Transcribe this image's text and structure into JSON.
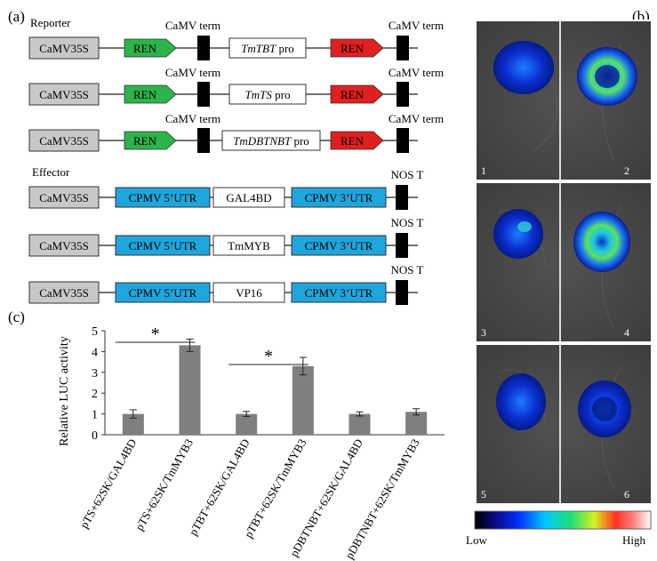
{
  "panel_a": {
    "label": "(a)",
    "reporter_label": "Reporter",
    "effector_label": "Effector",
    "reporters": [
      {
        "promoter35": "CaMV35S",
        "ren1": "REN",
        "term1": "CaMV term",
        "target_italic": "TmTBT",
        "target_rest": " pro",
        "ren2": "REN",
        "term2": "CaMV term"
      },
      {
        "promoter35": "CaMV35S",
        "ren1": "REN",
        "term1": "CaMV term",
        "target_italic": "TmTS",
        "target_rest": " pro",
        "ren2": "REN",
        "term2": "CaMV term"
      },
      {
        "promoter35": "CaMV35S",
        "ren1": "REN",
        "term1": "CaMV term",
        "target_italic": "TmDBTNBT",
        "target_rest": " pro",
        "ren2": "REN",
        "term2": "CaMV term"
      }
    ],
    "effectors": [
      {
        "promoter35": "CaMV35S",
        "utr5": "CPMV 5’UTR",
        "gene": "GAL4BD",
        "utr3": "CPMV 3’UTR",
        "term": "NOS T"
      },
      {
        "promoter35": "CaMV35S",
        "utr5": "CPMV 5’UTR",
        "gene": "TmMYB",
        "utr3": "CPMV 3’UTR",
        "term": "NOS T"
      },
      {
        "promoter35": "CaMV35S",
        "utr5": "CPMV 5’UTR",
        "gene": "VP16",
        "utr3": "CPMV 3’UTR",
        "term": "NOS T"
      }
    ],
    "colors": {
      "promoter": "#c8c8c8",
      "ren_green": "#2cb34a",
      "ren_red": "#e01f1f",
      "utr_blue": "#1ea6dc",
      "terminator": "#000000"
    }
  },
  "panel_b": {
    "label": "(b)",
    "leaf_numbers": [
      "1",
      "2",
      "3",
      "4",
      "5",
      "6"
    ],
    "scale_low": "Low",
    "scale_high": "High"
  },
  "panel_c": {
    "label": "(c)",
    "significance": "*"
  },
  "chart_data": {
    "type": "bar",
    "ylabel": "Relative LUC activity",
    "ylim": [
      0,
      5
    ],
    "yticks": [
      "0",
      "1",
      "2",
      "3",
      "4",
      "5"
    ],
    "categories": [
      "pTS+62SK/GAL4BD",
      "pTS+62SK/TmMYB3",
      "pTBT+62SK/GAL4BD",
      "pTBT+62SK/TmMYB3",
      "pDBTNBT+62SK/GAL4BD",
      "pDBTNBT+62SK/TmMYB3"
    ],
    "values": [
      1.0,
      4.3,
      1.0,
      3.3,
      1.0,
      1.1
    ],
    "errors": [
      0.2,
      0.3,
      0.12,
      0.42,
      0.1,
      0.15
    ],
    "significance_pairs": [
      [
        0,
        1
      ],
      [
        2,
        3
      ]
    ],
    "bar_color": "#7f7f7f"
  }
}
